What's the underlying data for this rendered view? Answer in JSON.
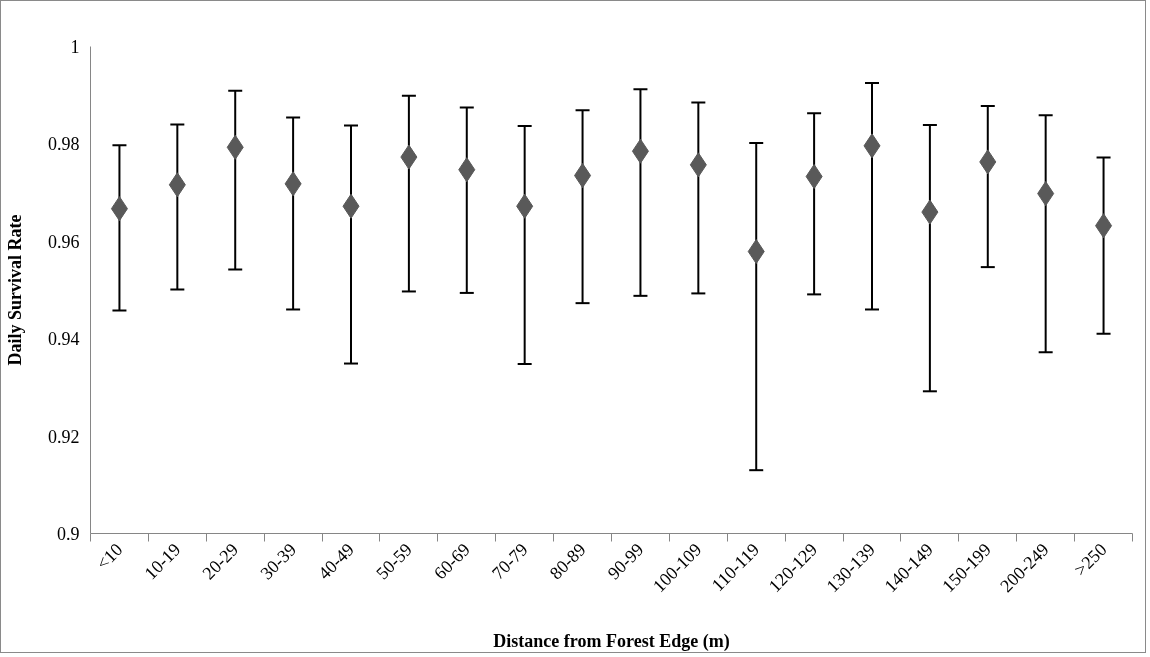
{
  "chart_data": {
    "type": "scatter",
    "xlabel": "Distance from Forest Edge (m)",
    "ylabel": "Daily Survival Rate",
    "categories": [
      "<10",
      "10-19",
      "20-29",
      "30-39",
      "40-49",
      "50-59",
      "60-69",
      "70-79",
      "80-89",
      "90-99",
      "100-109",
      "110-119",
      "120-129",
      "130-139",
      "140-149",
      "150-199",
      "200-249",
      ">250"
    ],
    "series": [
      {
        "color": "#595959",
        "values": [
          0.9667,
          0.9716,
          0.9793,
          0.9718,
          0.9672,
          0.9773,
          0.9747,
          0.9672,
          0.9735,
          0.9785,
          0.9757,
          0.9579,
          0.9733,
          0.9796,
          0.966,
          0.9763,
          0.9698,
          0.9632
        ],
        "errors": [
          [
            0.9458,
            0.9797
          ],
          [
            0.9501,
            0.984
          ],
          [
            0.9542,
            0.9909
          ],
          [
            0.946,
            0.9854
          ],
          [
            0.9349,
            0.9838
          ],
          [
            0.9497,
            0.9899
          ],
          [
            0.9494,
            0.9875
          ],
          [
            0.9348,
            0.9837
          ],
          [
            0.9473,
            0.9869
          ],
          [
            0.9488,
            0.9912
          ],
          [
            0.9493,
            0.9885
          ],
          [
            0.913,
            0.9802
          ],
          [
            0.9491,
            0.9863
          ],
          [
            0.946,
            0.9925
          ],
          [
            0.9292,
            0.9839
          ],
          [
            0.9547,
            0.9878
          ],
          [
            0.9372,
            0.9859
          ],
          [
            0.941,
            0.9772
          ]
        ]
      }
    ],
    "ylim": [
      0.9,
      1
    ],
    "yticks": [
      0.9,
      0.92,
      0.94,
      0.96,
      0.98,
      1
    ],
    "marker": "diamond",
    "grid": false
  }
}
